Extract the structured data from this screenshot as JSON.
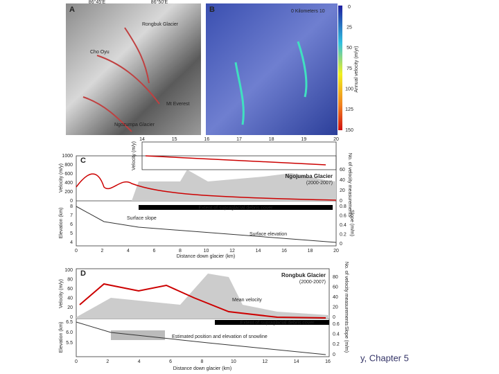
{
  "panel_a": {
    "label": "A",
    "top_ticks": [
      "86°45'E",
      "86°50'E"
    ],
    "annotations": [
      "Rongbuk Glacier",
      "Cho Oyu",
      "Mt Everest",
      "Ngozumpa Glacier"
    ]
  },
  "panel_b": {
    "label": "B",
    "scale": "0  Kilometers  10",
    "colorbar_title": "Annual velocity (m/yr)",
    "colorbar_ticks": [
      "0",
      "25",
      "50",
      "75",
      "100",
      "125",
      "150"
    ]
  },
  "panel_c": {
    "label": "C",
    "inset_x_ticks": [
      "14",
      "15",
      "16",
      "17",
      "18",
      "19",
      "20"
    ],
    "inset_y_label": "Velocity (m/y)",
    "title": "Ngojumba Glacier",
    "period": "(2000-2007)",
    "velocity_label": "Velocity (m/y)",
    "velocity_ticks": [
      "0",
      "200",
      "400",
      "600",
      "800",
      "1000"
    ],
    "count_label": "No. of velocity measurements",
    "count_ticks": [
      "0",
      "20",
      "40",
      "60"
    ],
    "debris": "Extent of supraglacial debris cover",
    "slope_note": "Surface slope",
    "elevation_note": "Surface elevation",
    "elevation_label": "Elevation (km)",
    "elevation_ticks": [
      "4",
      "5",
      "6",
      "7",
      "8"
    ],
    "slope_label": "Slope (m/m)",
    "slope_ticks": [
      "0",
      "0.2",
      "0.4",
      "0.6",
      "0.8"
    ],
    "x_label": "Distance down glacier (km)",
    "x_ticks": [
      "0",
      "2",
      "4",
      "6",
      "8",
      "10",
      "12",
      "14",
      "16",
      "18",
      "20"
    ]
  },
  "panel_d": {
    "label": "D",
    "title": "Rongbuk Glacier",
    "period": "(2000-2007)",
    "mean_note": "Mean velocity",
    "velocity_label": "Velocity (m/y)",
    "velocity_ticks": [
      "0",
      "20",
      "40",
      "60",
      "80",
      "100"
    ],
    "count_label": "No. of velocity measurements",
    "count_ticks": [
      "0",
      "20",
      "40",
      "60",
      "80"
    ],
    "debris": "Extent of supraglacial debris cover",
    "snowline_note": "Estimated position and elevation of snowline",
    "elevation_label": "Elevation (km)",
    "elevation_ticks": [
      "5.5",
      "6.0",
      "6.5"
    ],
    "slope_label": "Slope (m/m)",
    "slope_ticks": [
      "0",
      "0.2",
      "0.4",
      "0.6"
    ],
    "x_label": "Distance down glacier (km)",
    "x_ticks": [
      "0",
      "2",
      "4",
      "6",
      "8",
      "10",
      "12",
      "14",
      "16"
    ]
  },
  "footer": "y, Chapter 5"
}
